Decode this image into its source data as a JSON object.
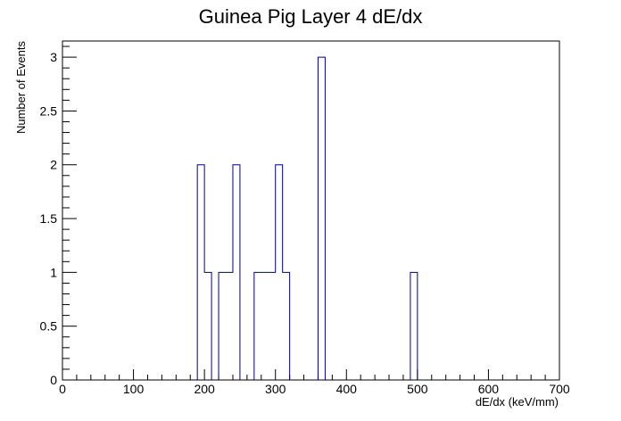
{
  "chart_data": {
    "type": "bar",
    "title": "Guinea Pig Layer 4 dE/dx",
    "xlabel": "dE/dx (keV/mm)",
    "ylabel": "Number of Events",
    "xlim": [
      0,
      700
    ],
    "ylim": [
      0,
      3.15
    ],
    "bin_width": 10,
    "x_ticks": [
      0,
      100,
      200,
      300,
      400,
      500,
      600,
      700
    ],
    "x_tick_labels": [
      "0",
      "100",
      "200",
      "300",
      "400",
      "500",
      "600",
      "700"
    ],
    "y_ticks": [
      0,
      0.5,
      1,
      1.5,
      2,
      2.5,
      3
    ],
    "y_tick_labels": [
      "0",
      "0.5",
      "1",
      "1.5",
      "2",
      "2.5",
      "3"
    ],
    "bins": [
      {
        "x": 190,
        "value": 2
      },
      {
        "x": 200,
        "value": 1
      },
      {
        "x": 220,
        "value": 1
      },
      {
        "x": 230,
        "value": 1
      },
      {
        "x": 240,
        "value": 2
      },
      {
        "x": 270,
        "value": 1
      },
      {
        "x": 280,
        "value": 1
      },
      {
        "x": 290,
        "value": 1
      },
      {
        "x": 300,
        "value": 2
      },
      {
        "x": 310,
        "value": 1
      },
      {
        "x": 360,
        "value": 3
      },
      {
        "x": 490,
        "value": 1
      }
    ],
    "colors": {
      "histogram": "#00007f",
      "axis": "#000000"
    }
  }
}
